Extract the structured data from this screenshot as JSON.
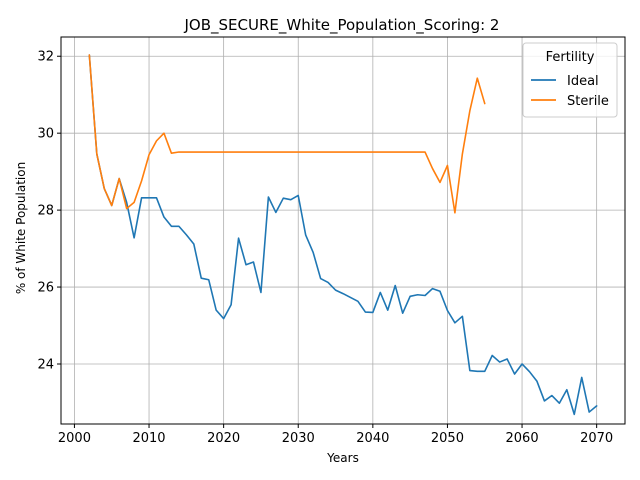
{
  "chart_data": {
    "type": "line",
    "title": "JOB_SECURE_White_Population_Scoring: 2",
    "xlabel": "Years",
    "ylabel": "% of White Population",
    "xlim": [
      1998.2,
      2073.8
    ],
    "ylim": [
      22.44,
      32.5
    ],
    "xticks": [
      2000,
      2010,
      2020,
      2030,
      2040,
      2050,
      2060,
      2070
    ],
    "yticks": [
      24,
      26,
      28,
      30,
      32
    ],
    "grid": true,
    "legend": {
      "title": "Fertility",
      "placement": "top-right"
    },
    "series": [
      {
        "name": "Ideal",
        "color": "#1f77b4",
        "x": [
          2002,
          2003,
          2004,
          2005,
          2006,
          2007,
          2008,
          2009,
          2010,
          2011,
          2012,
          2013,
          2014,
          2015,
          2016,
          2017,
          2018,
          2019,
          2020,
          2021,
          2022,
          2023,
          2024,
          2025,
          2026,
          2027,
          2028,
          2029,
          2030,
          2031,
          2032,
          2033,
          2034,
          2035,
          2036,
          2037,
          2038,
          2039,
          2040,
          2041,
          2042,
          2043,
          2044,
          2045,
          2046,
          2047,
          2048,
          2049,
          2050,
          2051,
          2052,
          2053,
          2054,
          2055,
          2056,
          2057,
          2058,
          2059,
          2060,
          2061,
          2062,
          2063,
          2064,
          2065,
          2066,
          2067,
          2068,
          2069,
          2070
        ],
        "y": [
          32.03,
          29.46,
          28.56,
          28.12,
          28.82,
          28.2,
          27.28,
          28.32,
          28.32,
          28.32,
          27.82,
          27.58,
          27.58,
          27.36,
          27.12,
          26.23,
          26.19,
          25.4,
          25.18,
          25.54,
          27.27,
          26.58,
          26.65,
          25.86,
          28.34,
          27.94,
          28.31,
          28.27,
          28.38,
          27.35,
          26.9,
          26.22,
          26.12,
          25.92,
          25.83,
          25.73,
          25.63,
          25.35,
          25.34,
          25.86,
          25.4,
          26.04,
          25.32,
          25.76,
          25.8,
          25.78,
          25.96,
          25.89,
          25.39,
          25.07,
          25.24,
          23.83,
          23.81,
          23.81,
          24.22,
          24.05,
          24.13,
          23.74,
          24.0,
          23.8,
          23.55,
          23.04,
          23.18,
          22.98,
          23.33,
          22.69,
          23.65,
          22.75,
          22.91
        ]
      },
      {
        "name": "Sterile",
        "color": "#ff7f0e",
        "x": [
          2002,
          2003,
          2004,
          2005,
          2006,
          2007,
          2008,
          2009,
          2010,
          2011,
          2012,
          2013,
          2014,
          2015,
          2016,
          2017,
          2018,
          2019,
          2020,
          2021,
          2022,
          2023,
          2024,
          2025,
          2026,
          2027,
          2028,
          2029,
          2030,
          2031,
          2032,
          2033,
          2034,
          2035,
          2036,
          2037,
          2038,
          2039,
          2040,
          2041,
          2042,
          2043,
          2044,
          2045,
          2046,
          2047,
          2048,
          2049,
          2050,
          2051,
          2052,
          2053,
          2054,
          2055
        ],
        "y": [
          32.03,
          29.46,
          28.56,
          28.12,
          28.82,
          28.04,
          28.2,
          28.76,
          29.44,
          29.8,
          30.0,
          29.48,
          29.51,
          29.51,
          29.51,
          29.51,
          29.51,
          29.51,
          29.51,
          29.51,
          29.51,
          29.51,
          29.51,
          29.51,
          29.51,
          29.51,
          29.51,
          29.51,
          29.51,
          29.51,
          29.51,
          29.51,
          29.51,
          29.51,
          29.51,
          29.51,
          29.51,
          29.51,
          29.51,
          29.51,
          29.51,
          29.51,
          29.51,
          29.51,
          29.51,
          29.51,
          29.08,
          28.72,
          29.16,
          27.93,
          29.46,
          30.58,
          31.43,
          30.77
        ]
      }
    ]
  }
}
